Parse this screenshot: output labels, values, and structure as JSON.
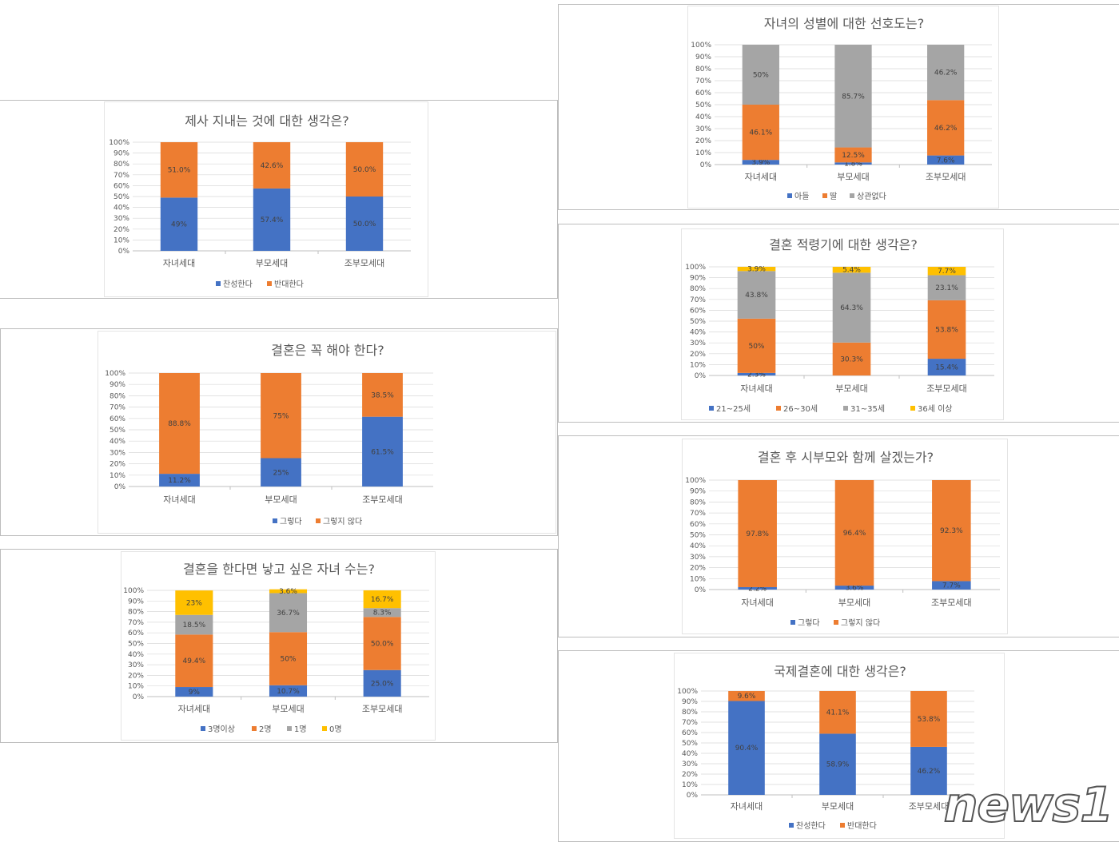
{
  "colors": {
    "blue": "#4472C4",
    "orange": "#ED7D31",
    "gray": "#A5A5A5",
    "yellow": "#FFC000",
    "text": "#595959",
    "grid": "#D9D9D9"
  },
  "y_ticks": [
    "0%",
    "10%",
    "20%",
    "30%",
    "40%",
    "50%",
    "60%",
    "70%",
    "80%",
    "90%",
    "100%"
  ],
  "watermark": "news1",
  "chart_data": [
    {
      "id": "jesa",
      "type": "bar",
      "stacked": true,
      "title": "제사 지내는 것에 대한 생각은?",
      "categories": [
        "자녀세대",
        "부모세대",
        "조부모세대"
      ],
      "ylim": [
        0,
        100
      ],
      "series": [
        {
          "name": "찬성한다",
          "color": "#4472C4",
          "values": [
            49,
            57.4,
            50.0
          ],
          "labels": [
            "49%",
            "57.4%",
            "50.0%"
          ]
        },
        {
          "name": "반대한다",
          "color": "#ED7D31",
          "values": [
            51,
            42.6,
            50.0
          ],
          "labels": [
            "51.0%",
            "42.6%",
            "50.0%"
          ]
        }
      ]
    },
    {
      "id": "marriage",
      "type": "bar",
      "stacked": true,
      "title": "결혼은 꼭 해야 한다?",
      "categories": [
        "자녀세대",
        "부모세대",
        "조부모세대"
      ],
      "ylim": [
        0,
        100
      ],
      "series": [
        {
          "name": "그렇다",
          "color": "#4472C4",
          "values": [
            11.2,
            25,
            61.5
          ],
          "labels": [
            "11.2%",
            "25%",
            "61.5%"
          ]
        },
        {
          "name": "그렇지 않다",
          "color": "#ED7D31",
          "values": [
            88.8,
            75,
            38.5
          ],
          "labels": [
            "88.8%",
            "75%",
            "38.5%"
          ]
        }
      ]
    },
    {
      "id": "children",
      "type": "bar",
      "stacked": true,
      "title": "결혼을 한다면 낳고 싶은 자녀 수는?",
      "categories": [
        "자녀세대",
        "부모세대",
        "조부모세대"
      ],
      "ylim": [
        0,
        100
      ],
      "series": [
        {
          "name": "3명이상",
          "color": "#4472C4",
          "values": [
            9,
            10.7,
            25.0
          ],
          "labels": [
            "9%",
            "10.7%",
            "25.0%"
          ]
        },
        {
          "name": "2명",
          "color": "#ED7D31",
          "values": [
            49.4,
            50,
            50.0
          ],
          "labels": [
            "49.4%",
            "50%",
            "50.0%"
          ]
        },
        {
          "name": "1명",
          "color": "#A5A5A5",
          "values": [
            18.5,
            36.7,
            8.3
          ],
          "labels": [
            "18.5%",
            "36.7%",
            "8.3%"
          ]
        },
        {
          "name": "0명",
          "color": "#FFC000",
          "values": [
            23,
            3.6,
            16.7
          ],
          "labels": [
            "23%",
            "3.6%",
            "16.7%"
          ]
        }
      ]
    },
    {
      "id": "gender",
      "type": "bar",
      "stacked": true,
      "title": "자녀의 성별에 대한 선호도는?",
      "categories": [
        "자녀세대",
        "부모세대",
        "조부모세대"
      ],
      "ylim": [
        0,
        100
      ],
      "series": [
        {
          "name": "아들",
          "color": "#4472C4",
          "values": [
            3.9,
            1.8,
            7.6
          ],
          "labels": [
            "3.9%",
            "1.8%",
            "7.6%"
          ]
        },
        {
          "name": "딸",
          "color": "#ED7D31",
          "values": [
            46.1,
            12.5,
            46.2
          ],
          "labels": [
            "46.1%",
            "12.5%",
            "46.2%"
          ]
        },
        {
          "name": "상관없다",
          "color": "#A5A5A5",
          "values": [
            50,
            85.7,
            46.2
          ],
          "labels": [
            "50%",
            "85.7%",
            "46.2%"
          ]
        }
      ]
    },
    {
      "id": "age",
      "type": "bar",
      "stacked": true,
      "title": "결혼 적령기에 대한 생각은?",
      "categories": [
        "자녀세대",
        "부모세대",
        "조부모세대"
      ],
      "ylim": [
        0,
        100
      ],
      "series": [
        {
          "name": "21~25세",
          "color": "#4472C4",
          "values": [
            2.3,
            0,
            15.4
          ],
          "labels": [
            "2.3%",
            "",
            "15.4%"
          ]
        },
        {
          "name": "26~30세",
          "color": "#ED7D31",
          "values": [
            50,
            30.3,
            53.8
          ],
          "labels": [
            "50%",
            "30.3%",
            "53.8%"
          ]
        },
        {
          "name": "31~35세",
          "color": "#A5A5A5",
          "values": [
            43.8,
            64.3,
            23.1
          ],
          "labels": [
            "43.8%",
            "64.3%",
            "23.1%"
          ]
        },
        {
          "name": "36세 이상",
          "color": "#FFC000",
          "values": [
            3.9,
            5.4,
            7.7
          ],
          "labels": [
            "3.9%",
            "5.4%",
            "7.7%"
          ]
        }
      ]
    },
    {
      "id": "inlaws",
      "type": "bar",
      "stacked": true,
      "title": "결혼 후 시부모와 함께 살겠는가?",
      "categories": [
        "자녀세대",
        "부모세대",
        "조부모세대"
      ],
      "ylim": [
        0,
        100
      ],
      "series": [
        {
          "name": "그렇다",
          "color": "#4472C4",
          "values": [
            2.2,
            3.6,
            7.7
          ],
          "labels": [
            "2.2%",
            "3.6%",
            "7.7%"
          ]
        },
        {
          "name": "그렇지 않다",
          "color": "#ED7D31",
          "values": [
            97.8,
            96.4,
            92.3
          ],
          "labels": [
            "97.8%",
            "96.4%",
            "92.3%"
          ]
        }
      ]
    },
    {
      "id": "intl",
      "type": "bar",
      "stacked": true,
      "title": "국제결혼에 대한 생각은?",
      "categories": [
        "자녀세대",
        "부모세대",
        "조부모세대"
      ],
      "ylim": [
        0,
        100
      ],
      "series": [
        {
          "name": "찬성한다",
          "color": "#4472C4",
          "values": [
            90.4,
            58.9,
            46.2
          ],
          "labels": [
            "90.4%",
            "58.9%",
            "46.2%"
          ]
        },
        {
          "name": "반대한다",
          "color": "#ED7D31",
          "values": [
            9.6,
            41.1,
            53.8
          ],
          "labels": [
            "9.6%",
            "41.1%",
            "53.8%"
          ]
        }
      ]
    }
  ]
}
